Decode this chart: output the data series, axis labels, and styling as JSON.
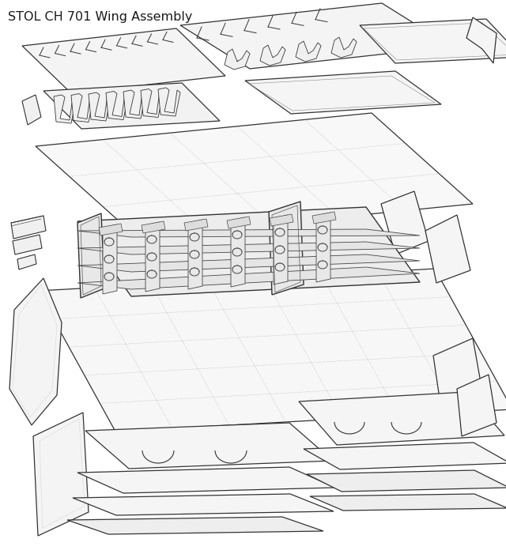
{
  "title": "STOL CH 701 Wing Assembly",
  "title_fontsize": 11.5,
  "title_color": "#1a1a1a",
  "background_color": "#ffffff",
  "line_color": "#333333",
  "line_width": 0.75,
  "figsize": [
    6.4,
    7.01
  ],
  "dpi": 100,
  "grid_color": "#999999",
  "grid_lw": 0.35
}
